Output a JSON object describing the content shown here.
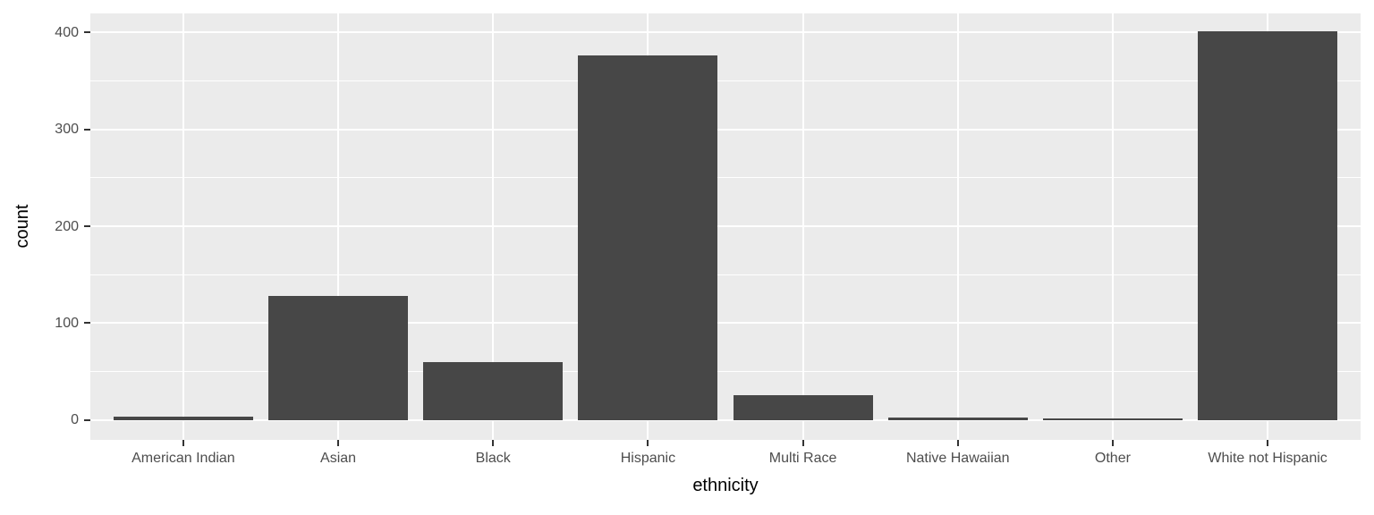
{
  "chart_data": {
    "type": "bar",
    "title": "",
    "xlabel": "ethnicity",
    "ylabel": "count",
    "categories": [
      "American Indian",
      "Asian",
      "Black",
      "Hispanic",
      "Multi Race",
      "Native Hawaiian",
      "Other",
      "White not Hispanic"
    ],
    "values": [
      4,
      128,
      60,
      376,
      26,
      3,
      2,
      401
    ],
    "yticks": [
      0,
      100,
      200,
      300,
      400
    ],
    "ytick_labels": [
      "0",
      "100",
      "200",
      "300",
      "400"
    ],
    "minor_gridlines": [
      50,
      150,
      250,
      350
    ],
    "ylim": [
      -20,
      420
    ],
    "bar_width_fraction": 0.9,
    "grid": true,
    "legend": "none",
    "style": "ggplot2-theme-grey",
    "colors": {
      "bar_fill": "#474747",
      "panel_background": "#EBEBEB",
      "gridline": "#FFFFFF",
      "tick_mark": "#333333",
      "tick_label": "#4D4D4D",
      "axis_title": "#000000",
      "figure_background": "#FFFFFF"
    }
  }
}
